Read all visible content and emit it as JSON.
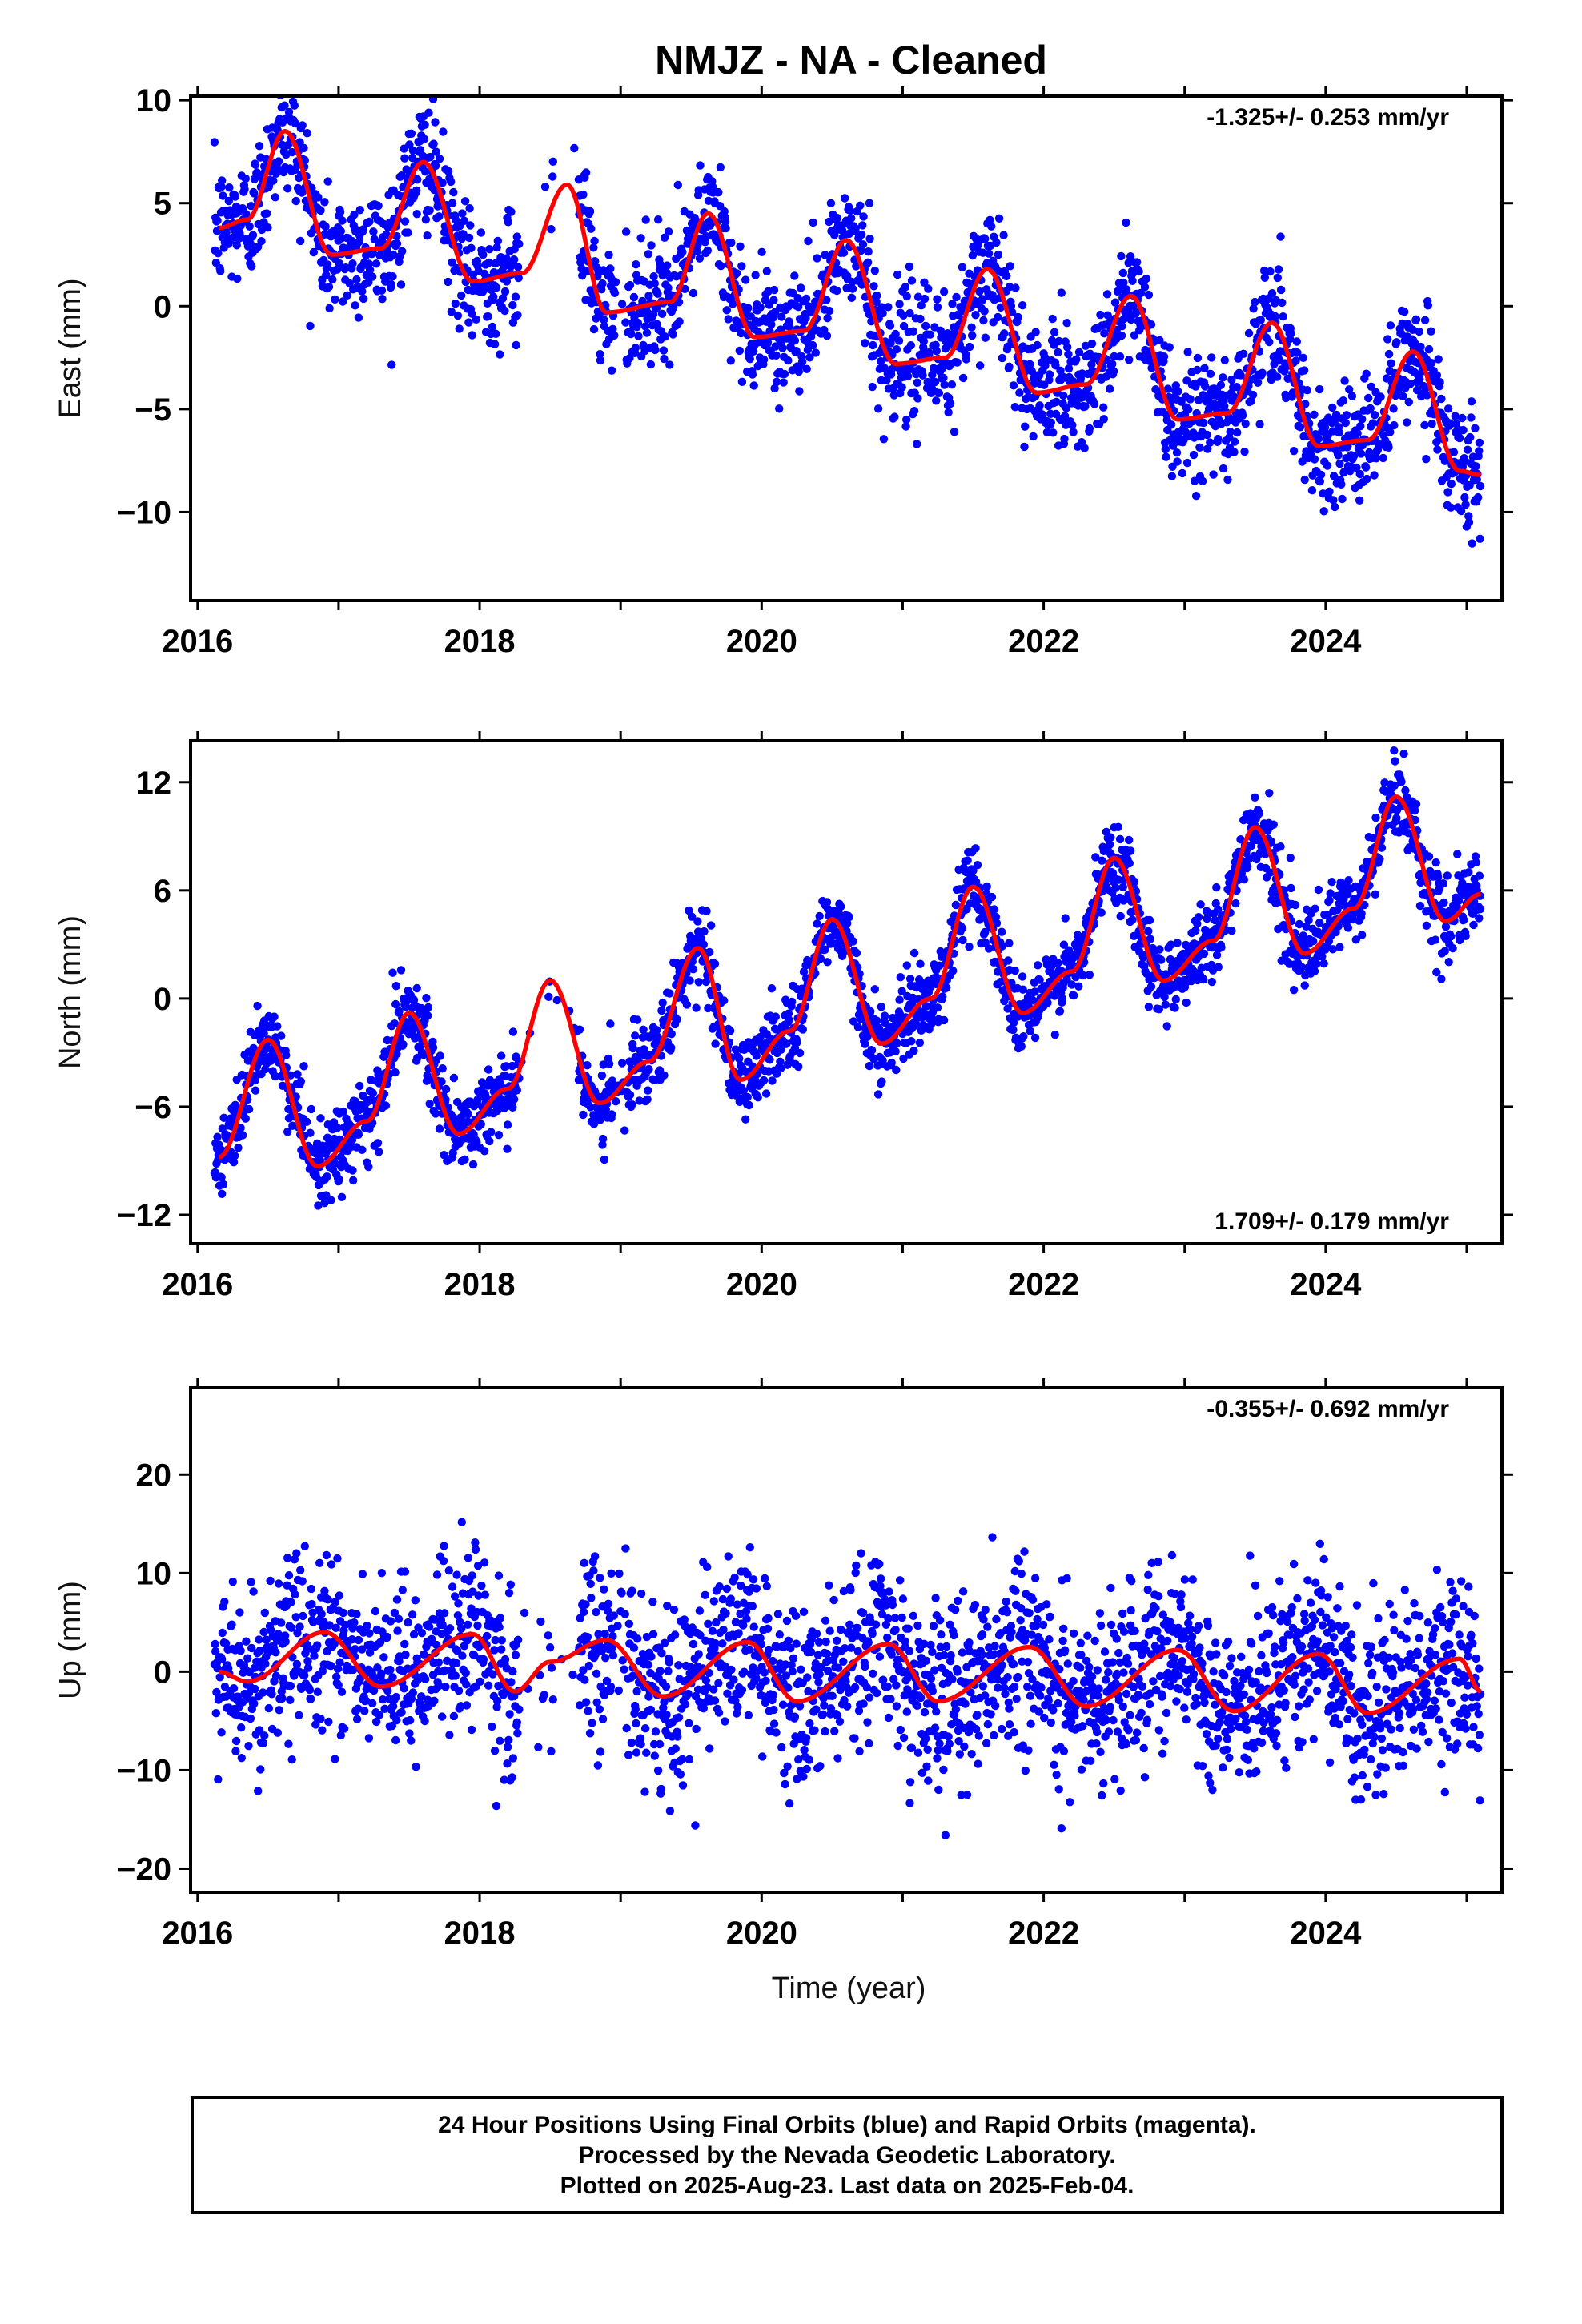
{
  "title": "NMJZ  - NA - Cleaned",
  "xlabel": "Time (year)",
  "footer": [
    "24 Hour Positions Using Final Orbits (blue) and Rapid Orbits (magenta).",
    "Processed by the Nevada Geodetic Laboratory.",
    "Plotted on 2025-Aug-23. Last data on 2025-Feb-04."
  ],
  "colors": {
    "observations": "#0000ff",
    "model": "#ff0000",
    "axes": "#000000"
  },
  "chart_data": [
    {
      "type": "scatter",
      "ylabel": "East (mm)",
      "xlim": [
        2015.95,
        2025.25
      ],
      "ylim": [
        -14.3,
        10.2
      ],
      "xticks": [
        2016,
        2018,
        2020,
        2022,
        2024
      ],
      "yticks": [
        10,
        5,
        0,
        -5,
        -10
      ],
      "ytick_labels": [
        "10",
        "5",
        "0",
        "−5",
        "−10"
      ],
      "rate_label": "-1.325+/- 0.253 mm/yr",
      "rate_label_position": "top-right",
      "model": {
        "x": [
          2016.15,
          2016.35,
          2016.62,
          2016.95,
          2017.3,
          2017.6,
          2017.95,
          2018.3,
          2018.62,
          2018.9,
          2019.35,
          2019.62,
          2019.95,
          2020.3,
          2020.6,
          2020.95,
          2021.3,
          2021.6,
          2021.95,
          2022.3,
          2022.62,
          2022.95,
          2023.3,
          2023.62,
          2023.95,
          2024.3,
          2024.62,
          2024.95,
          2025.1
        ],
        "y": [
          3.8,
          4.2,
          8.5,
          2.5,
          2.8,
          7.0,
          1.2,
          1.6,
          5.9,
          -0.3,
          0.2,
          4.5,
          -1.5,
          -1.2,
          3.2,
          -2.8,
          -2.5,
          1.8,
          -4.2,
          -3.8,
          0.5,
          -5.5,
          -5.2,
          -0.8,
          -6.8,
          -6.5,
          -2.2,
          -8.0,
          -8.2
        ]
      },
      "noise_sd": 1.5
    },
    {
      "type": "scatter",
      "ylabel": "North (mm)",
      "xlim": [
        2015.95,
        2025.25
      ],
      "ylim": [
        -13.6,
        14.3
      ],
      "xticks": [
        2016,
        2018,
        2020,
        2022,
        2024
      ],
      "yticks": [
        12,
        6,
        0,
        -6,
        -12
      ],
      "ytick_labels": [
        "12",
        "6",
        "0",
        "−6",
        "−12"
      ],
      "rate_label": "1.709+/- 0.179 mm/yr",
      "rate_label_position": "bottom-right",
      "model": {
        "x": [
          2016.15,
          2016.5,
          2016.85,
          2017.2,
          2017.5,
          2017.85,
          2018.2,
          2018.5,
          2018.85,
          2019.2,
          2019.55,
          2019.85,
          2020.2,
          2020.5,
          2020.85,
          2021.2,
          2021.5,
          2021.85,
          2022.2,
          2022.5,
          2022.85,
          2023.2,
          2023.5,
          2023.85,
          2024.2,
          2024.5,
          2024.85,
          2025.1
        ],
        "y": [
          -8.8,
          -2.3,
          -9.3,
          -6.8,
          -0.8,
          -7.5,
          -5.0,
          1.0,
          -5.8,
          -3.5,
          2.8,
          -4.5,
          -1.8,
          4.4,
          -2.5,
          0.0,
          6.2,
          -0.8,
          1.5,
          7.8,
          1.0,
          3.2,
          9.5,
          2.5,
          5.0,
          11.2,
          4.3,
          5.8
        ]
      },
      "noise_sd": 1.1
    },
    {
      "type": "scatter",
      "ylabel": "Up (mm)",
      "xlim": [
        2015.95,
        2025.25
      ],
      "ylim": [
        -22.4,
        28.8
      ],
      "xticks": [
        2016,
        2018,
        2020,
        2022,
        2024
      ],
      "yticks": [
        20,
        10,
        0,
        -10,
        -20
      ],
      "ytick_labels": [
        "20",
        "10",
        "0",
        "−10",
        "−20"
      ],
      "rate_label": "-0.355+/- 0.692 mm/yr",
      "rate_label_position": "top-right",
      "model": {
        "x": [
          2016.15,
          2016.35,
          2016.9,
          2017.3,
          2017.95,
          2018.25,
          2018.5,
          2018.9,
          2019.3,
          2019.9,
          2020.25,
          2020.9,
          2021.25,
          2021.9,
          2022.3,
          2022.95,
          2023.35,
          2023.95,
          2024.3,
          2024.95,
          2025.1
        ],
        "y": [
          0.0,
          -1.0,
          4.0,
          -1.5,
          3.8,
          -2.0,
          1.0,
          3.2,
          -2.5,
          3.0,
          -3.0,
          2.8,
          -3.0,
          2.5,
          -3.5,
          2.2,
          -4.0,
          1.8,
          -4.2,
          1.3,
          -2.0
        ]
      },
      "noise_sd": 4.5
    }
  ]
}
